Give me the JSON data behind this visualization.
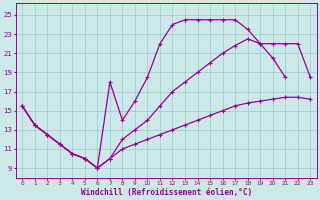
{
  "xlabel": "Windchill (Refroidissement éolien,°C)",
  "bg_color": "#cce8e8",
  "grid_color": "#99cccc",
  "line_color": "#990099",
  "x_ticks": [
    0,
    1,
    2,
    3,
    4,
    5,
    6,
    7,
    8,
    9,
    10,
    11,
    12,
    13,
    14,
    15,
    16,
    17,
    18,
    19,
    20,
    21,
    22,
    23
  ],
  "y_ticks": [
    9,
    11,
    13,
    15,
    17,
    19,
    21,
    23,
    25
  ],
  "ylim": [
    8.0,
    26.2
  ],
  "xlim": [
    -0.5,
    23.5
  ],
  "line1_x": [
    0,
    1,
    2,
    3,
    4,
    5,
    6,
    7,
    8,
    9,
    10,
    11,
    12,
    13,
    14,
    15,
    16,
    17,
    18,
    19,
    20,
    21,
    22,
    23
  ],
  "line1_y": [
    15.5,
    13.5,
    12.5,
    11.5,
    10.5,
    10.0,
    9.0,
    10.0,
    11.0,
    11.5,
    12.0,
    12.5,
    13.0,
    13.5,
    14.0,
    14.5,
    15.0,
    15.5,
    15.8,
    16.0,
    16.2,
    16.4,
    16.4,
    16.2
  ],
  "line2_x": [
    0,
    1,
    2,
    3,
    4,
    5,
    6,
    7,
    8,
    9,
    10,
    11,
    12,
    13,
    14,
    15,
    16,
    17,
    18,
    19,
    20,
    21
  ],
  "line2_y": [
    15.5,
    13.5,
    12.5,
    11.5,
    10.5,
    10.0,
    9.0,
    18.0,
    14.0,
    16.0,
    18.5,
    22.0,
    24.0,
    24.5,
    24.5,
    24.5,
    24.5,
    24.5,
    23.5,
    22.0,
    20.5,
    18.5
  ],
  "line3_x": [
    0,
    1,
    2,
    3,
    4,
    5,
    6,
    7,
    8,
    9,
    10,
    11,
    12,
    13,
    14,
    15,
    16,
    17,
    18,
    19,
    20,
    21,
    22,
    23
  ],
  "line3_y": [
    15.5,
    13.5,
    12.5,
    11.5,
    10.5,
    10.0,
    9.0,
    10.0,
    12.0,
    13.0,
    14.0,
    15.5,
    17.0,
    18.0,
    19.0,
    20.0,
    21.0,
    21.8,
    22.5,
    22.0,
    22.0,
    22.0,
    22.0,
    18.5
  ]
}
